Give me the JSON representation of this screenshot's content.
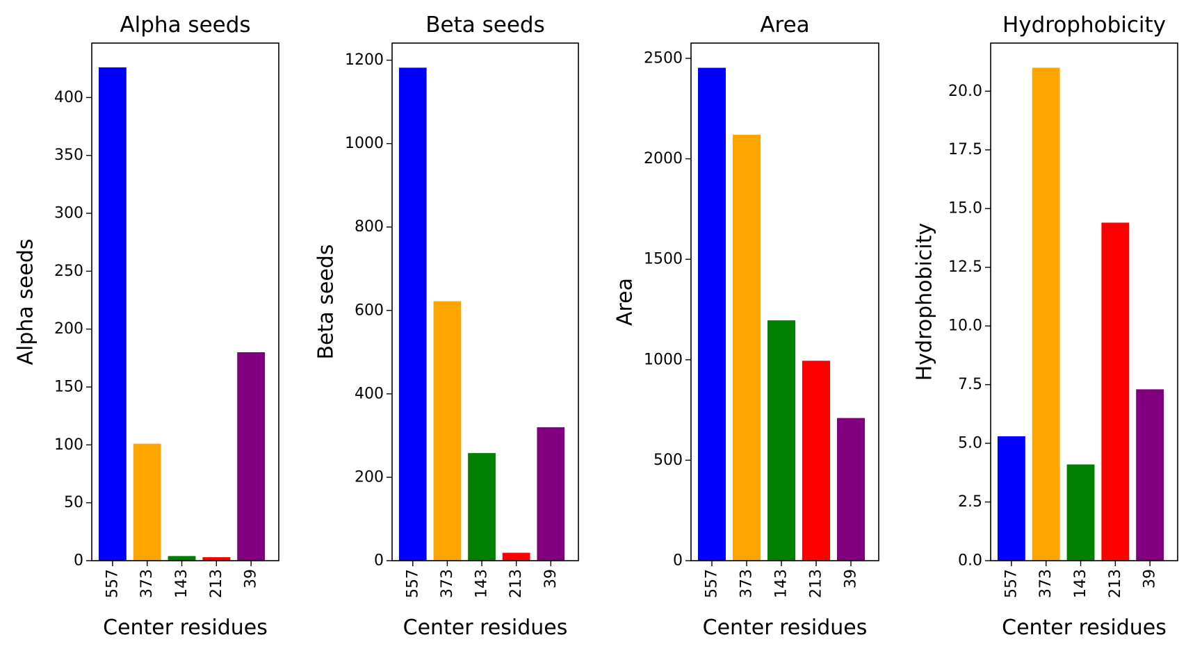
{
  "chart_data": [
    {
      "type": "bar",
      "title": "Alpha seeds",
      "xlabel": "Center residues",
      "ylabel": "Alpha seeds",
      "categories": [
        "557",
        "373",
        "143",
        "213",
        "39"
      ],
      "values": [
        426,
        101,
        4,
        3,
        180
      ],
      "colors": [
        "#0000ff",
        "#ffa500",
        "#008000",
        "#ff0000",
        "#800080"
      ],
      "ylim": [
        0,
        447
      ],
      "yticks": [
        0,
        50,
        100,
        150,
        200,
        250,
        300,
        350,
        400
      ],
      "ytick_labels": [
        "0",
        "50",
        "100",
        "150",
        "200",
        "250",
        "300",
        "350",
        "400"
      ],
      "grid": false
    },
    {
      "type": "bar",
      "title": "Beta seeds",
      "xlabel": "Center residues",
      "ylabel": "Beta seeds",
      "categories": [
        "557",
        "373",
        "143",
        "213",
        "39"
      ],
      "values": [
        1182,
        622,
        258,
        19,
        320
      ],
      "colors": [
        "#0000ff",
        "#ffa500",
        "#008000",
        "#ff0000",
        "#800080"
      ],
      "ylim": [
        0,
        1241
      ],
      "yticks": [
        0,
        200,
        400,
        600,
        800,
        1000,
        1200
      ],
      "ytick_labels": [
        "0",
        "200",
        "400",
        "600",
        "800",
        "1000",
        "1200"
      ],
      "grid": false
    },
    {
      "type": "bar",
      "title": "Area",
      "xlabel": "Center residues",
      "ylabel": "Area",
      "categories": [
        "557",
        "373",
        "143",
        "213",
        "39"
      ],
      "values": [
        2453,
        2120,
        1196,
        995,
        710
      ],
      "colors": [
        "#0000ff",
        "#ffa500",
        "#008000",
        "#ff0000",
        "#800080"
      ],
      "ylim": [
        0,
        2576
      ],
      "yticks": [
        0,
        500,
        1000,
        1500,
        2000,
        2500
      ],
      "ytick_labels": [
        "0",
        "500",
        "1000",
        "1500",
        "2000",
        "2500"
      ],
      "grid": false
    },
    {
      "type": "bar",
      "title": "Hydrophobicity",
      "xlabel": "Center residues",
      "ylabel": "Hydrophobicity",
      "categories": [
        "557",
        "373",
        "143",
        "213",
        "39"
      ],
      "values": [
        5.3,
        21.0,
        4.1,
        14.4,
        7.3
      ],
      "colors": [
        "#0000ff",
        "#ffa500",
        "#008000",
        "#ff0000",
        "#800080"
      ],
      "ylim": [
        0,
        22.05
      ],
      "yticks": [
        0,
        2.5,
        5,
        7.5,
        10,
        12.5,
        15,
        17.5,
        20
      ],
      "ytick_labels": [
        "0.0",
        "2.5",
        "5.0",
        "7.5",
        "10.0",
        "12.5",
        "15.0",
        "17.5",
        "20.0"
      ],
      "grid": false
    }
  ]
}
